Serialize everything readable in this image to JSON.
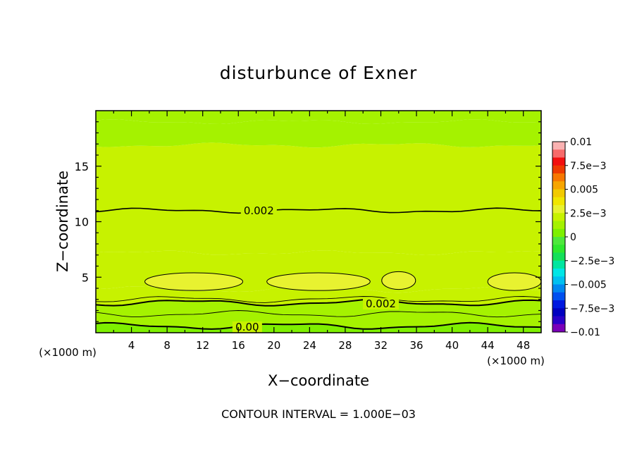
{
  "chart_data": {
    "type": "heatmap",
    "title": "disturbunce of Exner",
    "xlabel": "X−coordinate",
    "ylabel": "Z−coordinate",
    "x_unit": "(×1000 m)",
    "y_unit": "(×1000 m)",
    "xlim": [
      0,
      50
    ],
    "ylim": [
      0,
      20
    ],
    "x_ticks": [
      4,
      8,
      12,
      16,
      20,
      24,
      28,
      32,
      36,
      40,
      44,
      48
    ],
    "x_tick_labels": [
      "4",
      "8",
      "12",
      "16",
      "20",
      "24",
      "28",
      "32",
      "36",
      "40",
      "44",
      "48"
    ],
    "y_ticks": [
      5,
      10,
      15
    ],
    "y_tick_labels": [
      "5",
      "10",
      "15"
    ],
    "footer": "CONTOUR INTERVAL = 1.000E−03",
    "contour_interval": 0.001,
    "contour_labels": [
      {
        "text": "0.002",
        "x": 18.3,
        "z": 11.0
      },
      {
        "text": "0.002",
        "x": 32.0,
        "z": 2.6
      },
      {
        "text": "0.00",
        "x": 17.0,
        "z": 0.5
      }
    ],
    "bands": [
      {
        "z_bottom": 0.0,
        "z_top": 0.6,
        "value": 0.0005
      },
      {
        "z_bottom": 0.6,
        "z_top": 1.7,
        "value": 0.001
      },
      {
        "z_bottom": 1.7,
        "z_top": 2.7,
        "value": 0.0015
      },
      {
        "z_bottom": 2.7,
        "z_top": 3.9,
        "value": 0.0021
      },
      {
        "z_bottom": 3.9,
        "z_top": 7.2,
        "value": 0.0024
      },
      {
        "z_bottom": 7.2,
        "z_top": 11.0,
        "value": 0.0022
      },
      {
        "z_bottom": 11.0,
        "z_top": 16.9,
        "value": 0.0019
      },
      {
        "z_bottom": 16.9,
        "z_top": 19.0,
        "value": 0.0014
      },
      {
        "z_bottom": 19.0,
        "z_top": 20.0,
        "value": 0.0009
      }
    ],
    "maxima_regions": [
      {
        "x_center": 11.0,
        "z_center": 4.6,
        "value": 0.0027
      },
      {
        "x_center": 25.0,
        "z_center": 4.6,
        "value": 0.0027
      },
      {
        "x_center": 34.0,
        "z_center": 4.7,
        "value": 0.0027
      },
      {
        "x_center": 47.0,
        "z_center": 4.6,
        "value": 0.0027
      }
    ],
    "colorbar": {
      "labels": [
        "0.01",
        "7.5e−3",
        "0.005",
        "2.5e−3",
        "0",
        "−2.5e−3",
        "−0.005",
        "−7.5e−3",
        "−0.01"
      ],
      "levels_top_to_bottom": [
        "#fab2b2",
        "#f76a6a",
        "#f20f0f",
        "#ee3a00",
        "#f77700",
        "#f7a500",
        "#f2ca00",
        "#f0e600",
        "#e8f230",
        "#c7f200",
        "#a5f200",
        "#7ef000",
        "#4ee83c",
        "#2ee82e",
        "#14e05a",
        "#00e6a0",
        "#00e6e6",
        "#00c0f0",
        "#0088f0",
        "#0050f0",
        "#0018e0",
        "#0000c0",
        "#2a00c8",
        "#7a00b8"
      ]
    }
  }
}
